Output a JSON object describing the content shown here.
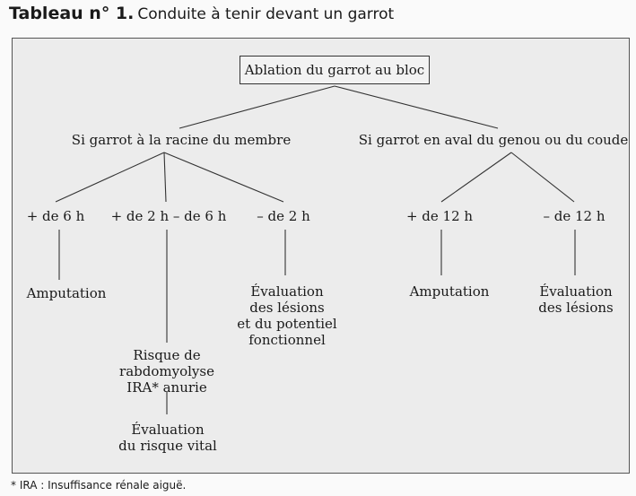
{
  "header": {
    "label": "Tableau n° 1.",
    "title": "Conduite à tenir devant un garrot"
  },
  "root": "Ablation du garrot au bloc",
  "branches": {
    "racine": "Si garrot à la racine du membre",
    "aval": "Si garrot en aval du genou ou du coude"
  },
  "durations": {
    "plus6h": "+ de 6 h",
    "between2and6h": "+ de 2 h – de 6 h",
    "minus2h": "– de 2 h",
    "plus12h": "+ de 12 h",
    "minus12h": "– de 12 h"
  },
  "outcomes": {
    "amputation_racine": "Amputation",
    "risque_line1": "Risque de",
    "risque_line2": "rabdomyolyse",
    "risque_line3": "IRA* anurie",
    "evaluation_vital_line1": "Évaluation",
    "evaluation_vital_line2": "du risque vital",
    "evaluation_potentiel_line1": "Évaluation",
    "evaluation_potentiel_line2": "des lésions",
    "evaluation_potentiel_line3": "et du potentiel",
    "evaluation_potentiel_line4": "fonctionnel",
    "amputation_aval": "Amputation",
    "evaluation_lesions_line1": "Évaluation",
    "evaluation_lesions_line2": "des lésions"
  },
  "footnote": "* IRA : Insuffisance rénale aiguë."
}
